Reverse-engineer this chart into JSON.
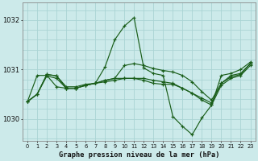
{
  "title": "Graphe pression niveau de la mer (hPa)",
  "background_color": "#cceaea",
  "grid_color": "#aad4d4",
  "line_color": "#1a5e1a",
  "x_ticks": [
    0,
    1,
    2,
    3,
    4,
    5,
    6,
    7,
    8,
    9,
    10,
    11,
    12,
    13,
    14,
    15,
    16,
    17,
    18,
    19,
    20,
    21,
    22,
    23
  ],
  "y_ticks": [
    1030,
    1031,
    1032
  ],
  "ylim": [
    1029.55,
    1032.35
  ],
  "xlim": [
    -0.5,
    23.5
  ],
  "series": [
    [
      1030.35,
      1030.5,
      1030.9,
      1030.87,
      1030.62,
      1030.62,
      1030.68,
      1030.72,
      1031.05,
      1031.6,
      1031.88,
      1032.05,
      1031.03,
      1030.92,
      1030.88,
      1030.05,
      1029.85,
      1029.68,
      1030.02,
      1030.28,
      1030.88,
      1030.92,
      1031.0,
      1031.15
    ],
    [
      1030.35,
      1030.5,
      1030.9,
      1030.87,
      1030.65,
      1030.65,
      1030.7,
      1030.72,
      1030.78,
      1030.82,
      1030.82,
      1030.82,
      1030.82,
      1030.78,
      1030.75,
      1030.72,
      1030.62,
      1030.52,
      1030.42,
      1030.32,
      1030.72,
      1030.85,
      1030.9,
      1031.12
    ],
    [
      1030.35,
      1030.5,
      1030.87,
      1030.82,
      1030.62,
      1030.62,
      1030.68,
      1030.72,
      1030.75,
      1030.78,
      1030.82,
      1030.82,
      1030.78,
      1030.72,
      1030.7,
      1030.7,
      1030.62,
      1030.52,
      1030.38,
      1030.28,
      1030.68,
      1030.82,
      1030.88,
      1031.08
    ],
    [
      1030.35,
      1030.88,
      1030.88,
      1030.65,
      1030.62,
      1030.62,
      1030.68,
      1030.72,
      1030.78,
      1030.82,
      1031.08,
      1031.12,
      1031.08,
      1031.02,
      1030.98,
      1030.95,
      1030.88,
      1030.75,
      1030.55,
      1030.38,
      1030.72,
      1030.88,
      1030.92,
      1031.12
    ]
  ]
}
